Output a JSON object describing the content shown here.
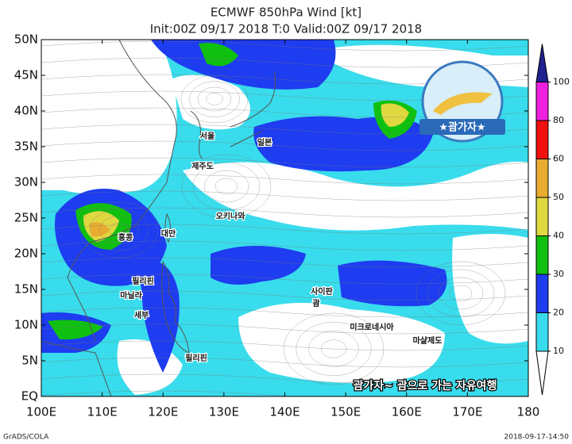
{
  "title": "ECMWF 850hPa Wind [kt]",
  "subtitle": "Init:00Z 09/17 2018 T:0 Valid:00Z 09/17 2018",
  "map": {
    "lonlim": [
      100,
      180
    ],
    "latlim": [
      0,
      50
    ],
    "lonticks": [
      {
        "value": 100,
        "label": "100E"
      },
      {
        "value": 110,
        "label": "110E"
      },
      {
        "value": 120,
        "label": "120E"
      },
      {
        "value": 130,
        "label": "130E"
      },
      {
        "value": 140,
        "label": "140E"
      },
      {
        "value": 150,
        "label": "150E"
      },
      {
        "value": 160,
        "label": "160E"
      },
      {
        "value": 170,
        "label": "170E"
      },
      {
        "value": 180,
        "label": "180"
      }
    ],
    "latticks": [
      {
        "value": 0,
        "label": "EQ"
      },
      {
        "value": 5,
        "label": "5N"
      },
      {
        "value": 10,
        "label": "10N"
      },
      {
        "value": 15,
        "label": "15N"
      },
      {
        "value": 20,
        "label": "20N"
      },
      {
        "value": 25,
        "label": "25N"
      },
      {
        "value": 30,
        "label": "30N"
      },
      {
        "value": 35,
        "label": "35N"
      },
      {
        "value": 40,
        "label": "40N"
      },
      {
        "value": 45,
        "label": "45N"
      },
      {
        "value": 50,
        "label": "50N"
      }
    ]
  },
  "colorbar": {
    "levels": [
      10,
      20,
      30,
      40,
      50,
      60,
      80,
      100
    ],
    "colors": [
      "#ffffff",
      "#38dcec",
      "#1e3cf0",
      "#10c010",
      "#e0d840",
      "#e8ac30",
      "#f01010",
      "#f020e0",
      "#202090"
    ]
  },
  "places": [
    "서울",
    "일본",
    "제주도",
    "오키나와",
    "홍콩",
    "대만",
    "필리핀",
    "마닐라",
    "세부",
    "필리핀",
    "사이판",
    "괌",
    "미크로네시아",
    "마샬제도"
  ],
  "badge": "★괌가자★",
  "watermark": "괌가자~ 괌으로 가는 자유여행",
  "credit": "GrADS/COLA",
  "timestamp": "2018-09-17-14:50"
}
